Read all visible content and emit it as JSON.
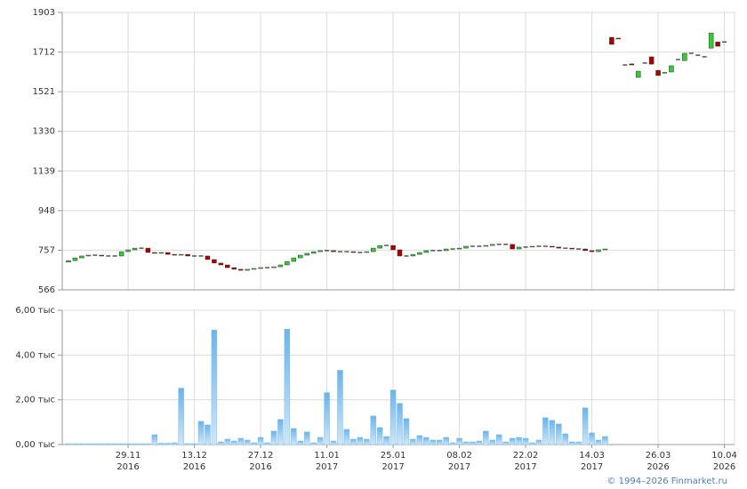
{
  "chart_data": [
    {
      "type": "candlestick",
      "open": [
        700,
        707,
        720,
        729,
        733,
        733,
        729,
        729,
        729,
        750,
        759,
        767,
        767,
        746,
        742,
        746,
        737,
        733,
        737,
        729,
        729,
        729,
        712,
        695,
        686,
        673,
        665,
        660,
        665,
        669,
        673,
        673,
        677,
        686,
        703,
        720,
        733,
        742,
        750,
        755,
        755,
        750,
        750,
        750,
        746,
        746,
        750,
        767,
        780,
        780,
        759,
        729,
        729,
        737,
        746,
        755,
        755,
        755,
        763,
        763,
        767,
        776,
        776,
        776,
        780,
        785,
        785,
        785,
        763,
        772,
        772,
        776,
        776,
        776,
        772,
        767,
        767,
        763,
        763,
        755,
        750,
        759,
        1783,
        1779,
        1650,
        1655,
        1590,
        1659,
        1689,
        1624,
        1612,
        1616,
        1676,
        1671,
        1706,
        1697,
        1689,
        1731,
        1761,
        1761
      ],
      "close": [
        707,
        720,
        729,
        733,
        733,
        729,
        729,
        729,
        750,
        759,
        767,
        767,
        746,
        742,
        746,
        737,
        733,
        737,
        729,
        729,
        729,
        712,
        695,
        686,
        673,
        665,
        660,
        665,
        669,
        673,
        673,
        677,
        686,
        703,
        720,
        733,
        742,
        750,
        755,
        755,
        750,
        750,
        750,
        746,
        746,
        750,
        767,
        780,
        780,
        759,
        729,
        729,
        737,
        746,
        755,
        755,
        755,
        763,
        763,
        767,
        776,
        776,
        776,
        780,
        785,
        785,
        785,
        763,
        772,
        772,
        776,
        776,
        776,
        772,
        767,
        767,
        763,
        763,
        755,
        750,
        759,
        763,
        1749,
        1775,
        1650,
        1650,
        1620,
        1659,
        1654,
        1599,
        1612,
        1646,
        1676,
        1706,
        1706,
        1697,
        1689,
        1804,
        1740,
        1761
      ],
      "up_color": "#33cc33",
      "down_color": "#aa0000",
      "ylim": [
        566,
        1903
      ],
      "yticks": [
        566,
        757,
        948,
        1139,
        1330,
        1521,
        1712,
        1903
      ],
      "grid": true
    },
    {
      "type": "bar",
      "categories": [
        null,
        null,
        null,
        null,
        null,
        null,
        null,
        null,
        null,
        "29.11",
        null,
        null,
        null,
        null,
        null,
        null,
        null,
        null,
        null,
        "13.12",
        null,
        null,
        null,
        null,
        null,
        null,
        null,
        null,
        null,
        "27.12",
        null,
        null,
        null,
        null,
        null,
        null,
        null,
        null,
        null,
        "11.01",
        null,
        null,
        null,
        null,
        null,
        null,
        null,
        null,
        null,
        "25.01",
        null,
        null,
        null,
        null,
        null,
        null,
        null,
        null,
        null,
        "08.02",
        null,
        null,
        null,
        null,
        null,
        null,
        null,
        null,
        null,
        "22.02",
        null,
        null,
        null,
        null,
        null,
        null,
        null,
        null,
        null,
        "14.03",
        null,
        null,
        null,
        null,
        null,
        null,
        null,
        null,
        null,
        "26.03",
        null,
        null,
        null,
        null,
        null,
        null,
        null,
        null,
        null,
        "10.04"
      ],
      "category_years": [
        null,
        null,
        null,
        null,
        null,
        null,
        null,
        null,
        null,
        "2016",
        null,
        null,
        null,
        null,
        null,
        null,
        null,
        null,
        null,
        "2016",
        null,
        null,
        null,
        null,
        null,
        null,
        null,
        null,
        null,
        "2016",
        null,
        null,
        null,
        null,
        null,
        null,
        null,
        null,
        null,
        "2017",
        null,
        null,
        null,
        null,
        null,
        null,
        null,
        null,
        null,
        "2017",
        null,
        null,
        null,
        null,
        null,
        null,
        null,
        null,
        null,
        "2017",
        null,
        null,
        null,
        null,
        null,
        null,
        null,
        null,
        null,
        "2017",
        null,
        null,
        null,
        null,
        null,
        null,
        null,
        null,
        null,
        "2017",
        null,
        null,
        null,
        null,
        null,
        null,
        null,
        null,
        null,
        "2026",
        null,
        null,
        null,
        null,
        null,
        null,
        null,
        null,
        null,
        "2026"
      ],
      "values": [
        40,
        40,
        40,
        40,
        40,
        40,
        40,
        40,
        40,
        40,
        40,
        40,
        40,
        440,
        60,
        60,
        80,
        2520,
        40,
        40,
        1040,
        880,
        5120,
        120,
        240,
        160,
        280,
        200,
        80,
        320,
        80,
        600,
        1120,
        5160,
        720,
        160,
        560,
        80,
        320,
        2320,
        160,
        3320,
        680,
        240,
        320,
        240,
        1280,
        760,
        360,
        2440,
        1840,
        1160,
        240,
        400,
        320,
        200,
        200,
        320,
        80,
        280,
        120,
        120,
        160,
        600,
        200,
        440,
        120,
        280,
        320,
        280,
        80,
        200,
        1200,
        1080,
        920,
        480,
        120,
        120,
        1640,
        520,
        200,
        360,
        0,
        0,
        0,
        0,
        0,
        0,
        0,
        0,
        0,
        0,
        0,
        0,
        0,
        0,
        0,
        0,
        0,
        0
      ],
      "color": "#7fbfee",
      "ylim": [
        0,
        6000
      ],
      "yticks": [
        {
          "value": 0,
          "label": "0,00 тыс"
        },
        {
          "value": 2000,
          "label": "2,00 тыс"
        },
        {
          "value": 4000,
          "label": "4,00 тыс"
        },
        {
          "value": 6000,
          "label": "6,00 тыс"
        }
      ],
      "grid": true
    }
  ],
  "footer": "© 1994–2026 Finmarket.ru"
}
